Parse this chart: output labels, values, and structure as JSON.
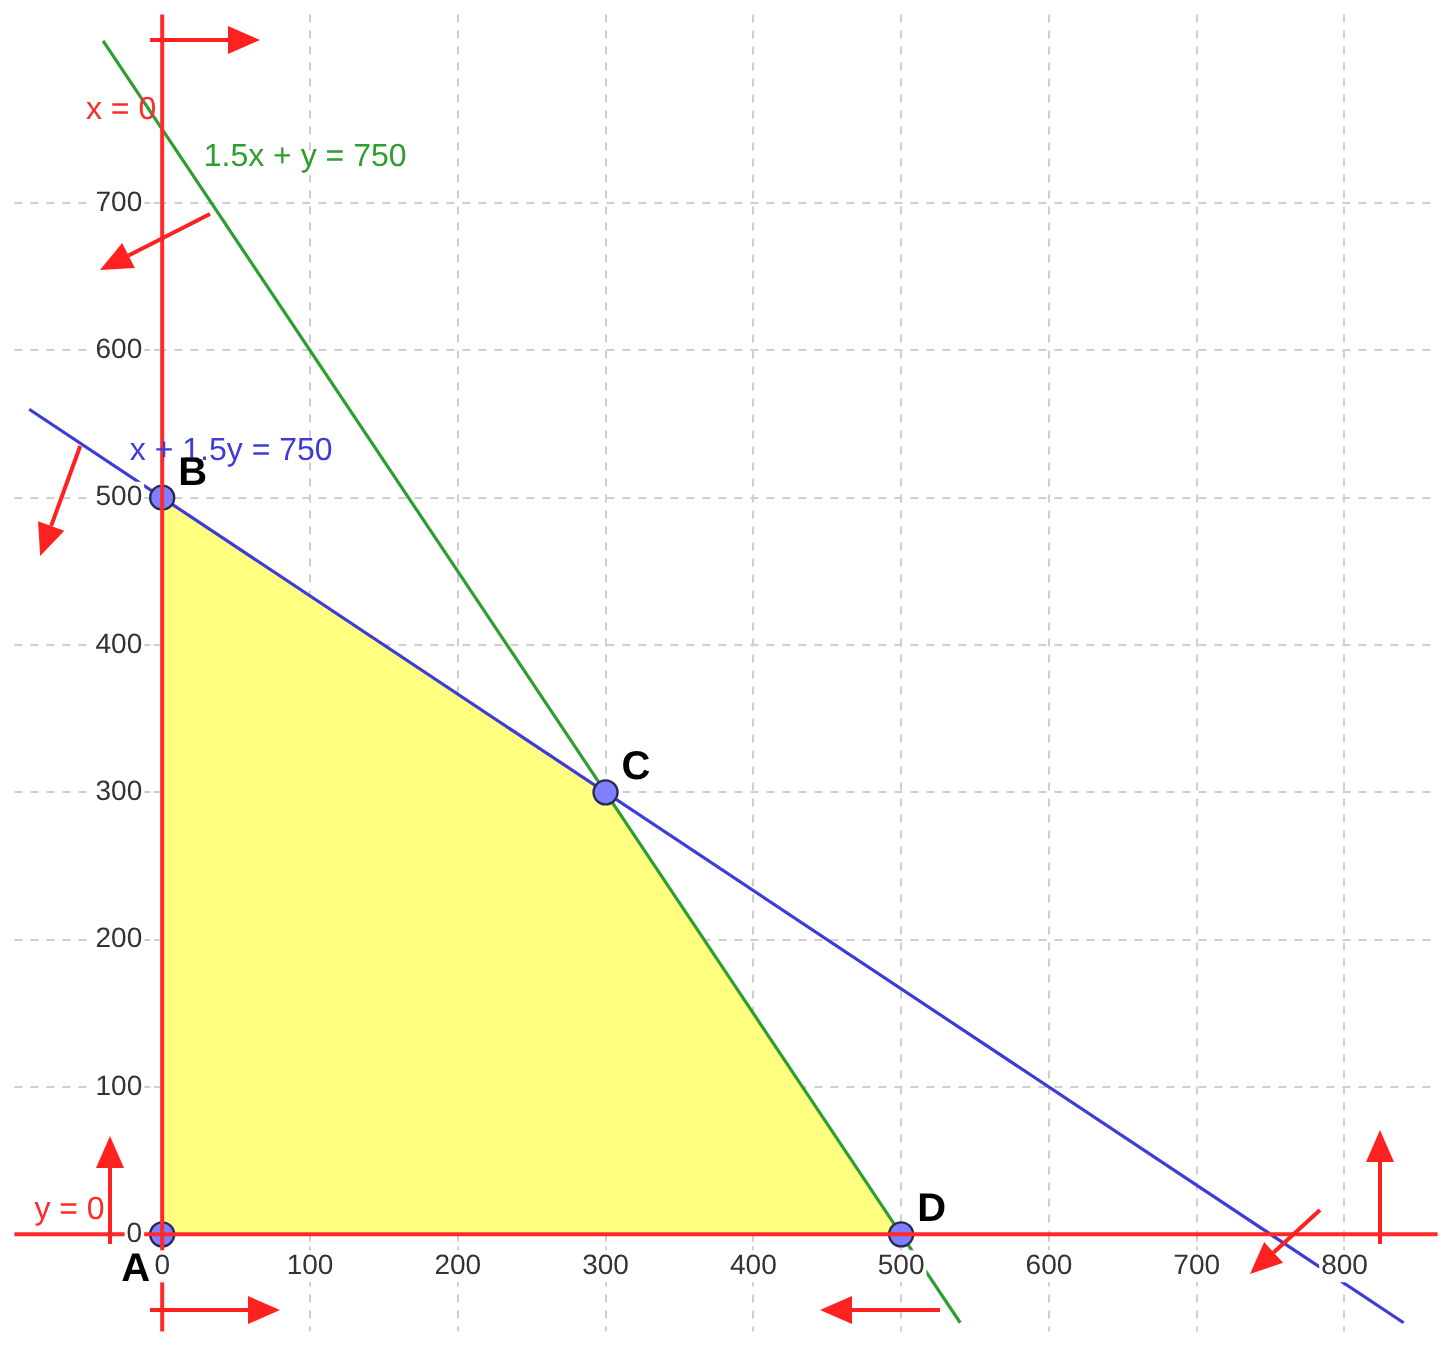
{
  "chart_data": {
    "type": "line",
    "xlim": [
      -100,
      863
    ],
    "ylim": [
      -66,
      828
    ],
    "xticks": [
      0,
      100,
      200,
      300,
      400,
      500,
      600,
      700,
      800
    ],
    "yticks": [
      0,
      100,
      200,
      300,
      400,
      500,
      600,
      700
    ],
    "grid": true,
    "legend": false,
    "series": [
      {
        "type": "area",
        "color": "#ffff80",
        "x": [
          0,
          300,
          500
        ],
        "values": [
          500,
          300,
          0
        ]
      },
      {
        "type": "line",
        "name": "1.5x + y = 750",
        "color": "#2e9e2e",
        "x": [
          -40,
          540
        ],
        "values": [
          810,
          -60
        ]
      },
      {
        "type": "line",
        "name": "x + 1.5y = 750",
        "color": "#3c3cd8",
        "x": [
          -90,
          840
        ],
        "values": [
          560,
          -60
        ]
      },
      {
        "type": "scatter",
        "marker": "circle",
        "color": "#7f7fff",
        "x": [
          0,
          0,
          300,
          500
        ],
        "values": [
          0,
          500,
          300,
          0
        ]
      }
    ],
    "annotations": [
      "x = 0",
      "y = 0",
      {
        "text": "A",
        "x": 0,
        "y": 0
      },
      {
        "text": "B",
        "x": 0,
        "y": 500
      },
      {
        "text": "C",
        "x": 300,
        "y": 300
      },
      {
        "text": "D",
        "x": 500,
        "y": 0
      }
    ]
  }
}
